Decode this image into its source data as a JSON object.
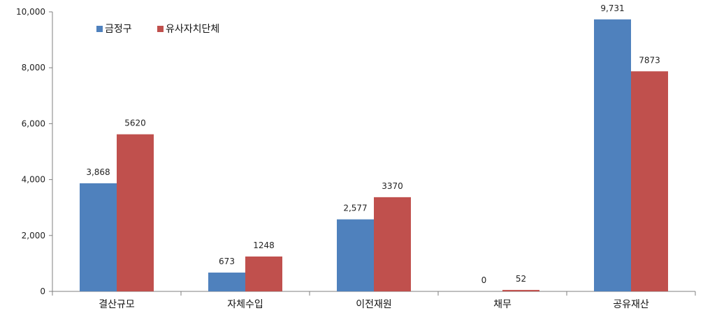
{
  "chart_data": {
    "type": "bar",
    "categories": [
      "결산규모",
      "자체수입",
      "이전재원",
      "채무",
      "공유재산"
    ],
    "series": [
      {
        "name": "금정구",
        "values": [
          3868,
          673,
          2577,
          0,
          9731
        ],
        "labels": [
          "3,868",
          "673",
          "2,577",
          "0",
          "9,731"
        ],
        "color": "#4f81bd"
      },
      {
        "name": "유사자치단체",
        "values": [
          5620,
          1248,
          3370,
          52,
          7873
        ],
        "labels": [
          "5620",
          "1248",
          "3370",
          "52",
          "7873"
        ],
        "color": "#c0504d"
      }
    ],
    "y_ticks": [
      "0",
      "2,000",
      "4,000",
      "6,000",
      "8,000",
      "10,000"
    ],
    "ylim": [
      0,
      10000
    ],
    "legend_position": "top-left",
    "grid": false
  }
}
